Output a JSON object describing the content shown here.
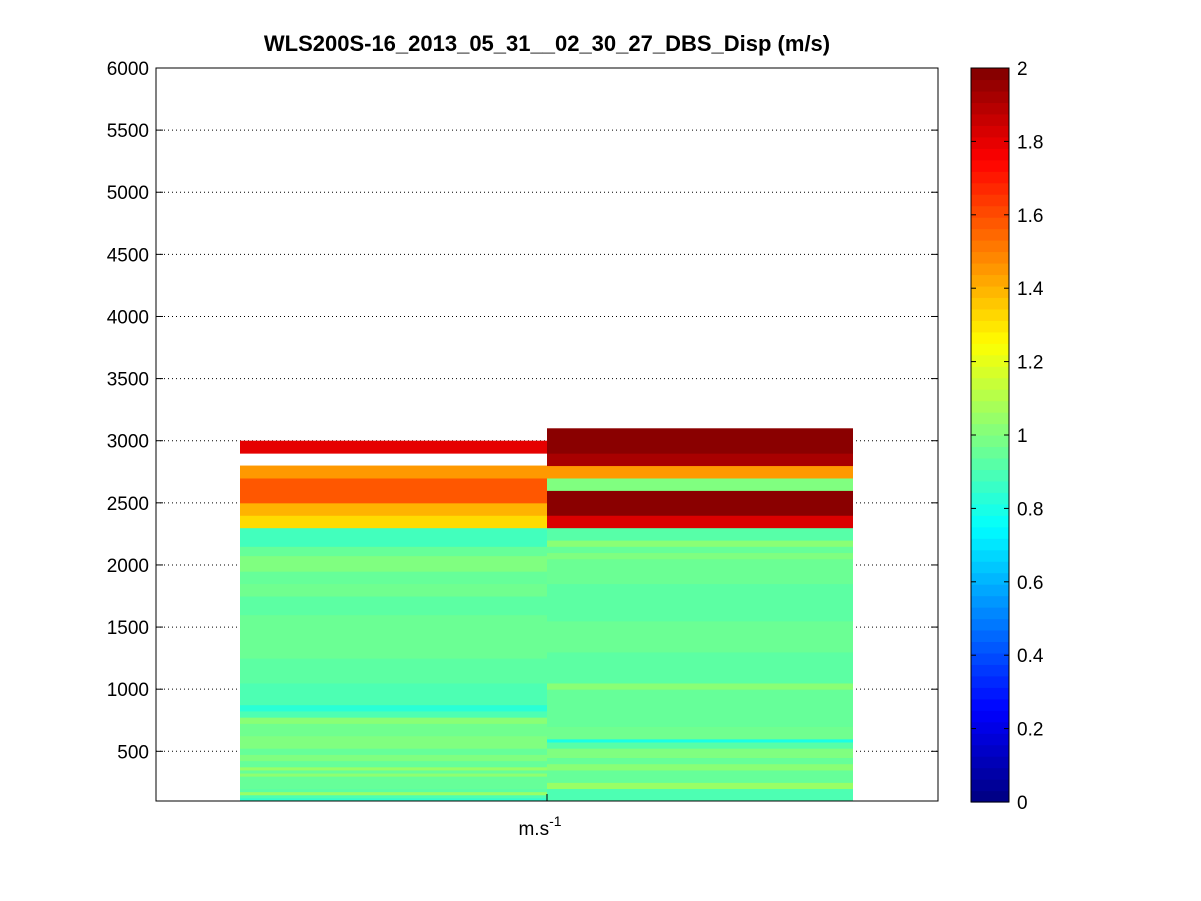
{
  "chart_data": {
    "type": "heatmap",
    "title": "WLS200S-16_2013_05_31__02_30_27_DBS_Disp (m/s)",
    "xlabel_base": "m.s",
    "xlabel_sup": "-1",
    "ylabel": "",
    "ylim": [
      100,
      6000
    ],
    "yticks": [
      500,
      1000,
      1500,
      2000,
      2500,
      3000,
      3500,
      4000,
      4500,
      5000,
      5500,
      6000
    ],
    "grid": true,
    "colormap": "jet",
    "clim": [
      0,
      2
    ],
    "colorbar_ticks": [
      0,
      0.2,
      0.4,
      0.6,
      0.8,
      1,
      1.2,
      1.4,
      1.6,
      1.8,
      2
    ],
    "row_height": 50,
    "columns": [
      {
        "segments": [
          {
            "y0": 100,
            "y1": 125,
            "v": 0.85
          },
          {
            "y0": 125,
            "y1": 150,
            "v": 0.9
          },
          {
            "y0": 150,
            "y1": 175,
            "v": 1.05
          },
          {
            "y0": 175,
            "y1": 200,
            "v": 0.93
          },
          {
            "y0": 200,
            "y1": 300,
            "v": 0.95
          },
          {
            "y0": 300,
            "y1": 325,
            "v": 1.03
          },
          {
            "y0": 325,
            "y1": 350,
            "v": 0.95
          },
          {
            "y0": 350,
            "y1": 375,
            "v": 1.05
          },
          {
            "y0": 375,
            "y1": 425,
            "v": 0.95
          },
          {
            "y0": 425,
            "y1": 475,
            "v": 1.0
          },
          {
            "y0": 475,
            "y1": 525,
            "v": 0.95
          },
          {
            "y0": 525,
            "y1": 625,
            "v": 1.0
          },
          {
            "y0": 625,
            "y1": 725,
            "v": 0.97
          },
          {
            "y0": 725,
            "y1": 775,
            "v": 1.02
          },
          {
            "y0": 775,
            "y1": 825,
            "v": 0.9
          },
          {
            "y0": 825,
            "y1": 875,
            "v": 0.83
          },
          {
            "y0": 875,
            "y1": 1050,
            "v": 0.9
          },
          {
            "y0": 1050,
            "y1": 1250,
            "v": 0.93
          },
          {
            "y0": 1250,
            "y1": 1600,
            "v": 0.96
          },
          {
            "y0": 1600,
            "y1": 1750,
            "v": 0.93
          },
          {
            "y0": 1750,
            "y1": 1850,
            "v": 0.97
          },
          {
            "y0": 1850,
            "y1": 1950,
            "v": 0.95
          },
          {
            "y0": 1950,
            "y1": 2075,
            "v": 1.0
          },
          {
            "y0": 2075,
            "y1": 2150,
            "v": 0.95
          },
          {
            "y0": 2150,
            "y1": 2300,
            "v": 0.88
          },
          {
            "y0": 2300,
            "y1": 2400,
            "v": 1.32
          },
          {
            "y0": 2400,
            "y1": 2500,
            "v": 1.4
          },
          {
            "y0": 2500,
            "y1": 2700,
            "v": 1.58
          },
          {
            "y0": 2700,
            "y1": 2800,
            "v": 1.45
          },
          {
            "y0": 2900,
            "y1": 3000,
            "v": 1.8
          }
        ]
      },
      {
        "segments": [
          {
            "y0": 100,
            "y1": 200,
            "v": 0.9
          },
          {
            "y0": 200,
            "y1": 250,
            "v": 1.05
          },
          {
            "y0": 250,
            "y1": 350,
            "v": 0.95
          },
          {
            "y0": 350,
            "y1": 400,
            "v": 1.02
          },
          {
            "y0": 400,
            "y1": 450,
            "v": 0.95
          },
          {
            "y0": 450,
            "y1": 525,
            "v": 1.0
          },
          {
            "y0": 525,
            "y1": 575,
            "v": 0.92
          },
          {
            "y0": 575,
            "y1": 600,
            "v": 0.8
          },
          {
            "y0": 600,
            "y1": 700,
            "v": 0.97
          },
          {
            "y0": 700,
            "y1": 1000,
            "v": 0.95
          },
          {
            "y0": 1000,
            "y1": 1050,
            "v": 1.02
          },
          {
            "y0": 1050,
            "y1": 1300,
            "v": 0.93
          },
          {
            "y0": 1300,
            "y1": 1550,
            "v": 0.96
          },
          {
            "y0": 1550,
            "y1": 1850,
            "v": 0.93
          },
          {
            "y0": 1850,
            "y1": 2050,
            "v": 0.96
          },
          {
            "y0": 2050,
            "y1": 2100,
            "v": 1.0
          },
          {
            "y0": 2100,
            "y1": 2150,
            "v": 0.95
          },
          {
            "y0": 2150,
            "y1": 2200,
            "v": 1.02
          },
          {
            "y0": 2200,
            "y1": 2300,
            "v": 0.92
          },
          {
            "y0": 2300,
            "y1": 2400,
            "v": 1.82
          },
          {
            "y0": 2400,
            "y1": 2600,
            "v": 1.98
          },
          {
            "y0": 2600,
            "y1": 2700,
            "v": 1.0
          },
          {
            "y0": 2700,
            "y1": 2800,
            "v": 1.45
          },
          {
            "y0": 2800,
            "y1": 2900,
            "v": 1.92
          },
          {
            "y0": 2900,
            "y1": 3100,
            "v": 1.98
          }
        ]
      }
    ]
  }
}
